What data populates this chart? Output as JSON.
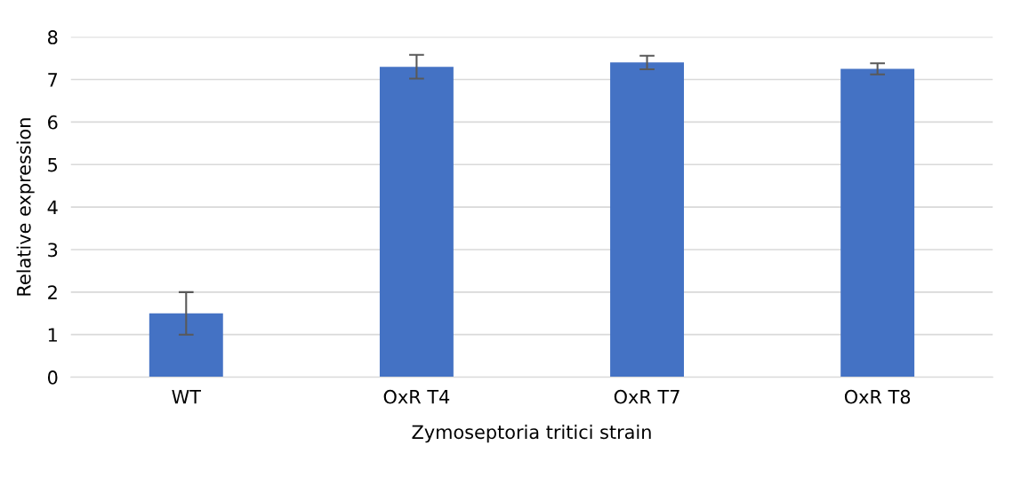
{
  "chart_data": {
    "type": "bar",
    "categories": [
      "WT",
      "OxR T4",
      "OxR T7",
      "OxR T8"
    ],
    "values": [
      1.5,
      7.3,
      7.4,
      7.25
    ],
    "errors": [
      0.5,
      0.28,
      0.16,
      0.13
    ],
    "color": "#4472c4",
    "xlabel": "Zymoseptoria tritici strain",
    "ylabel": "Relative expression",
    "ylim": [
      0,
      8
    ],
    "yticks": [
      0,
      1,
      2,
      3,
      4,
      5,
      6,
      7,
      8
    ],
    "grid": "y"
  }
}
